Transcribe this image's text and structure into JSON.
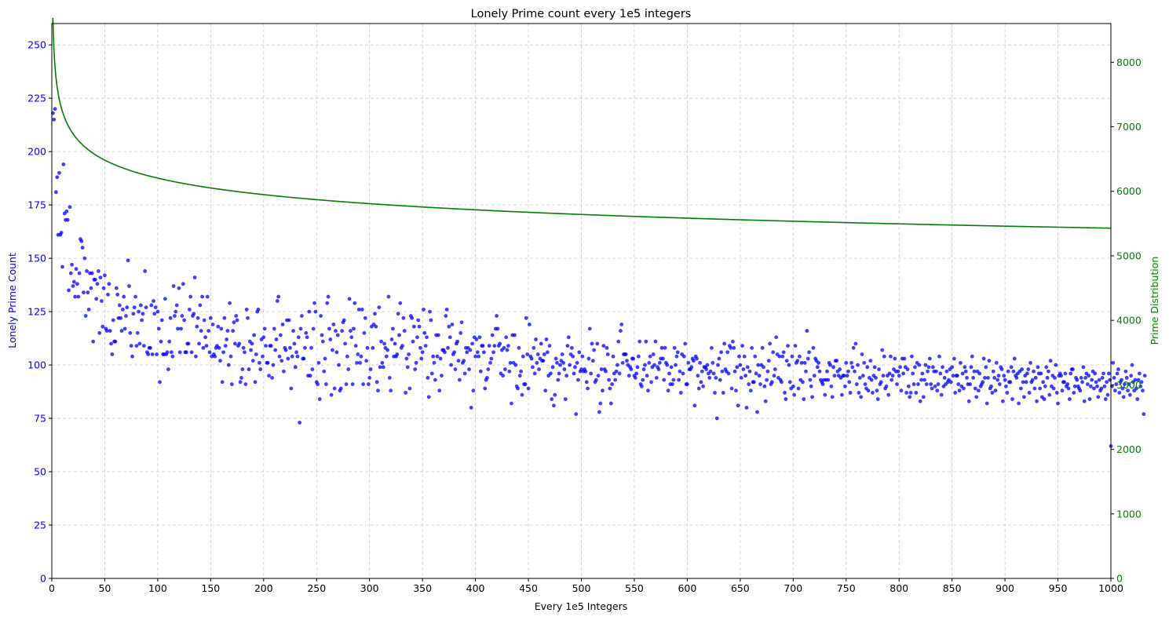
{
  "chart_data": {
    "type": "scatter+line",
    "title": "Lonely Prime count every 1e5 integers",
    "xlabel": "Every 1e5 Integers",
    "ylabel": "Lonely Prime Count",
    "y2label": "Prime Distribution",
    "xlim": [
      0,
      1000
    ],
    "ylim": [
      0,
      260
    ],
    "y2lim": [
      0,
      8600
    ],
    "xticks": [
      0,
      50,
      100,
      150,
      200,
      250,
      300,
      350,
      400,
      450,
      500,
      550,
      600,
      650,
      700,
      750,
      800,
      850,
      900,
      950,
      1000
    ],
    "yticks": [
      0,
      25,
      50,
      75,
      100,
      125,
      150,
      175,
      200,
      225,
      250
    ],
    "y2ticks": [
      0,
      1000,
      2000,
      3000,
      4000,
      5000,
      6000,
      7000,
      8000
    ],
    "grid": true,
    "colors": {
      "scatter": "#0000ff",
      "line": "#008000",
      "left_axis": "#0000ff",
      "right_axis": "#008000"
    },
    "series": [
      {
        "type": "scatter",
        "axis": "left",
        "values": [
          null,
          218,
          215,
          220,
          181,
          188,
          161,
          190,
          161,
          162,
          146,
          194,
          171,
          168,
          172,
          168,
          135,
          174,
          143,
          147,
          137,
          139,
          132,
          145,
          138,
          132,
          143,
          159,
          158,
          155,
          134,
          150,
          123,
          144,
          134,
          126,
          143,
          136,
          143,
          111,
          140,
          140,
          131,
          138,
          144,
          115,
          141,
          130,
          118,
          136,
          142,
          117,
          116,
          133,
          138,
          116,
          110,
          105,
          121,
          111,
          111,
          136,
          133,
          122,
          128,
          122,
          116,
          126,
          132,
          117,
          123,
          127,
          149,
          137,
          115,
          109,
          104,
          124,
          127,
          132,
          109,
          115,
          125,
          110,
          128,
          121,
          124,
          109,
          144,
          127,
          106,
          105,
          108,
          108,
          128,
          105,
          130,
          124,
          127,
          105,
          125,
          117,
          92,
          111,
          121,
          105,
          105,
          131,
          105,
          106,
          98,
          111,
          122,
          106,
          104,
          137,
          123,
          125,
          128,
          117,
          136,
          106,
          117,
          123,
          138,
          121,
          106,
          106,
          110,
          110,
          126,
          132,
          106,
          123,
          124,
          141,
          104,
          118,
          122,
          110,
          128,
          116,
          132,
          108,
          121,
          113,
          109,
          132,
          116,
          106,
          122,
          104,
          119,
          105,
          104,
          108,
          109,
          118,
          108,
          102,
          117,
          92,
          106,
          122,
          109,
          112,
          116,
          100,
          129,
          104,
          91,
          116,
          120,
          110,
          123,
          121,
          109,
          110,
          92,
          94,
          98,
          108,
          106,
          91,
          126,
          122,
          98,
          111,
          107,
          110,
          102,
          114,
          92,
          105,
          125,
          126,
          101,
          98,
          112,
          104,
          113,
          117,
          109,
          101,
          101,
          95,
          109,
          109,
          94,
          100,
          117,
          107,
          112,
          130,
          132,
          104,
          114,
          102,
          119,
          97,
          108,
          107,
          121,
          103,
          121,
          108,
          89,
          104,
          116,
          110,
          99,
          106,
          104,
          113,
          73,
          117,
          123,
          103,
          103,
          108,
          115,
          113,
          95,
          125,
          95,
          108,
          98,
          117,
          129,
          125,
          92,
          91,
          101,
          84,
          123,
          114,
          111,
          97,
          103,
          91,
          129,
          132,
          117,
          112,
          86,
          107,
          119,
          89,
          116,
          106,
          114,
          100,
          88,
          89,
          116,
          120,
          121,
          110,
          91,
          104,
          98,
          131,
          116,
          113,
          91,
          117,
          129,
          109,
          101,
          105,
          126,
          101,
          104,
          126,
          91,
          115,
          122,
          102,
          108,
          91,
          94,
          98,
          118,
          108,
          119,
          124,
          118,
          92,
          88,
          127,
          99,
          111,
          101,
          99,
          110,
          108,
          104,
          107,
          132,
          94,
          88,
          112,
          117,
          104,
          110,
          104,
          105,
          124,
          114,
          129,
          108,
          109,
          122,
          116,
          87,
          103,
          99,
          105,
          89,
          123,
          122,
          111,
          118,
          98,
          101,
          113,
          121,
          118,
          108,
          103,
          106,
          126,
          115,
          109,
          113,
          94,
          85,
          125,
          121,
          96,
          104,
          101,
          93,
          114,
          104,
          114,
          88,
          103,
          95,
          107,
          107,
          106,
          123,
          126,
          108,
          118,
          113,
          100,
          119,
          105,
          106,
          98,
          110,
          111,
          102,
          93,
          115,
          120,
          101,
          102,
          96,
          108,
          106,
          108,
          98,
          107,
          80,
          110,
          88,
          113,
          104,
          112,
          106,
          104,
          113,
          97,
          109,
          109,
          106,
          89,
          93,
          94,
          98,
          109,
          101,
          103,
          114,
          106,
          109,
          117,
          123,
          117,
          109,
          110,
          96,
          107,
          95,
          108,
          98,
          113,
          107,
          109,
          97,
          101,
          82,
          114,
          101,
          114,
          100,
          90,
          89,
          108,
          95,
          97,
          86,
          104,
          91,
          91,
          122,
          105,
          89,
          119,
          104,
          103,
          99,
          108,
          96,
          112,
          101,
          105,
          98,
          103,
          110,
          102,
          102,
          105,
          88,
          112,
          106,
          95,
          109,
          96,
          84,
          99,
          81,
          86,
          103,
          101,
          93,
          96,
          100,
          102,
          105,
          101,
          98,
          84,
          95,
          109,
          113,
          100,
          105,
          108,
          104,
          96,
          99,
          77,
          101,
          93,
          106,
          97,
          98,
          104,
          97,
          98,
          97,
          92,
          89,
          103,
          117,
          96,
          110,
          102,
          107,
          92,
          93,
          110,
          95,
          78,
          82,
          98,
          88,
          109,
          98,
          97,
          108,
          105,
          93,
          89,
          82,
          91,
          104,
          96,
          93,
          97,
          100,
          111,
          96,
          116,
          119,
          101,
          105,
          105,
          105,
          102,
          100,
          95,
          99,
          98,
          103,
          103,
          95,
          94,
          96,
          99,
          104,
          111,
          91,
          90,
          93,
          98,
          100,
          111,
          95,
          88,
          101,
          104,
          92,
          99,
          105,
          100,
          111,
          94,
          99,
          98,
          101,
          103,
          108,
          103,
          93,
          108,
          101,
          100,
          88,
          96,
          91,
          99,
          91,
          93,
          108,
          100,
          104,
          106,
          93,
          97,
          87,
          105,
          96,
          104,
          110,
          91,
          91,
          101,
          98,
          98,
          99,
          103,
          102,
          81,
          104,
          103,
          95,
          89,
          101,
          92,
          97,
          90,
          99,
          99,
          98,
          100,
          96,
          94,
          97,
          108,
          101,
          96,
          87,
          94,
          75,
          100,
          103,
          93,
          106,
          97,
          87,
          110,
          98,
          97,
          106,
          96,
          109,
          108,
          89,
          111,
          108,
          97,
          88,
          99,
          81,
          104,
          100,
          94,
          109,
          98,
          104,
          95,
          80,
          99,
          91,
          97,
          88,
          108,
          92,
          92,
          104,
          96,
          78,
          100,
          95,
          91,
          100,
          108,
          99,
          90,
          83,
          93,
          97,
          102,
          110,
          91,
          92,
          106,
          95,
          98,
          113,
          105,
          94,
          104,
          93,
          92,
          104,
          106,
          87,
          84,
          102,
          109,
          100,
          92,
          89,
          104,
          90,
          86,
          109,
          101,
          102,
          89,
          104,
          93,
          101,
          92,
          84,
          101,
          97,
          116,
          103,
          106,
          93,
          90,
          85,
          108,
          95,
          103,
          102,
          99,
          101,
          97,
          93,
          92,
          91,
          93,
          86,
          93,
          97,
          93,
          101,
          100,
          90,
          85,
          99,
          95,
          102,
          102,
          97,
          95,
          98,
          94,
          86,
          95,
          95,
          90,
          101,
          95,
          97,
          92,
          87,
          101,
          99,
          108,
          97,
          110,
          91,
          100,
          87,
          94,
          85,
          105,
          95,
          101,
          91,
          89,
          99,
          88,
          94,
          102,
          93,
          87,
          95,
          99,
          94,
          88,
          84,
          98,
          91,
          92,
          107,
          95,
          104,
          89,
          90,
          95,
          86,
          96,
          104,
          93,
          95,
          98,
          103,
          97,
          91,
          97,
          95,
          99,
          88,
          103,
          96,
          103,
          99,
          87,
          98,
          90,
          85,
          87,
          104,
          96,
          91,
          99,
          87,
          101,
          91,
          100,
          83,
          93,
          96,
          85,
          93,
          100,
          91,
          97,
          99,
          103,
          91,
          89,
          99,
          97,
          90,
          97,
          88,
          91,
          104,
          96,
          86,
          99,
          90,
          94,
          91,
          97,
          92,
          93,
          98,
          92,
          99,
          95,
          103,
          87,
          95,
          95,
          91,
          88,
          101,
          90,
          96,
          89,
          99,
          97,
          94,
          91,
          83,
          91,
          99,
          104,
          94,
          97,
          89,
          85,
          97,
          88,
          96,
          90,
          91,
          92,
          103,
          94,
          99,
          82,
          94,
          102,
          89,
          90,
          87,
          97,
          94,
          88,
          101,
          93,
          95,
          91,
          99,
          98,
          83,
          95,
          93,
          90,
          87,
          97,
          92,
          92,
          99,
          84,
          97,
          103,
          95,
          94,
          96,
          82,
          97,
          89,
          98,
          92,
          85,
          95,
          92,
          96,
          98,
          87,
          101,
          92,
          93,
          97,
          89,
          94,
          83,
          99,
          96,
          89,
          96,
          85,
          92,
          84,
          90,
          99,
          94,
          97,
          86,
          102,
          90,
          95,
          89,
          94,
          100,
          87,
          82,
          95,
          96,
          95,
          88,
          92,
          92,
          96,
          90,
          91,
          89,
          84,
          96,
          98,
          98,
          87,
          90,
          94,
          93,
          90,
          89,
          88,
          94,
          92,
          99,
          83,
          94,
          96,
          91,
          95,
          84,
          90,
          93,
          97,
          89,
          96,
          92,
          90,
          85,
          93,
          88,
          89,
          94,
          96,
          90,
          84,
          92,
          86,
          96,
          93,
          62,
          90,
          101,
          94,
          88,
          91,
          96,
          98,
          87,
          92,
          93,
          89,
          85,
          91,
          97,
          94,
          88,
          91,
          86,
          95,
          100,
          92,
          88,
          93,
          89,
          84,
          93,
          96,
          90,
          92,
          88,
          77,
          95
        ]
      },
      {
        "type": "line",
        "axis": "right",
        "model": "k / ln(k * 1e5)",
        "k_per_step": 100000
      }
    ]
  }
}
